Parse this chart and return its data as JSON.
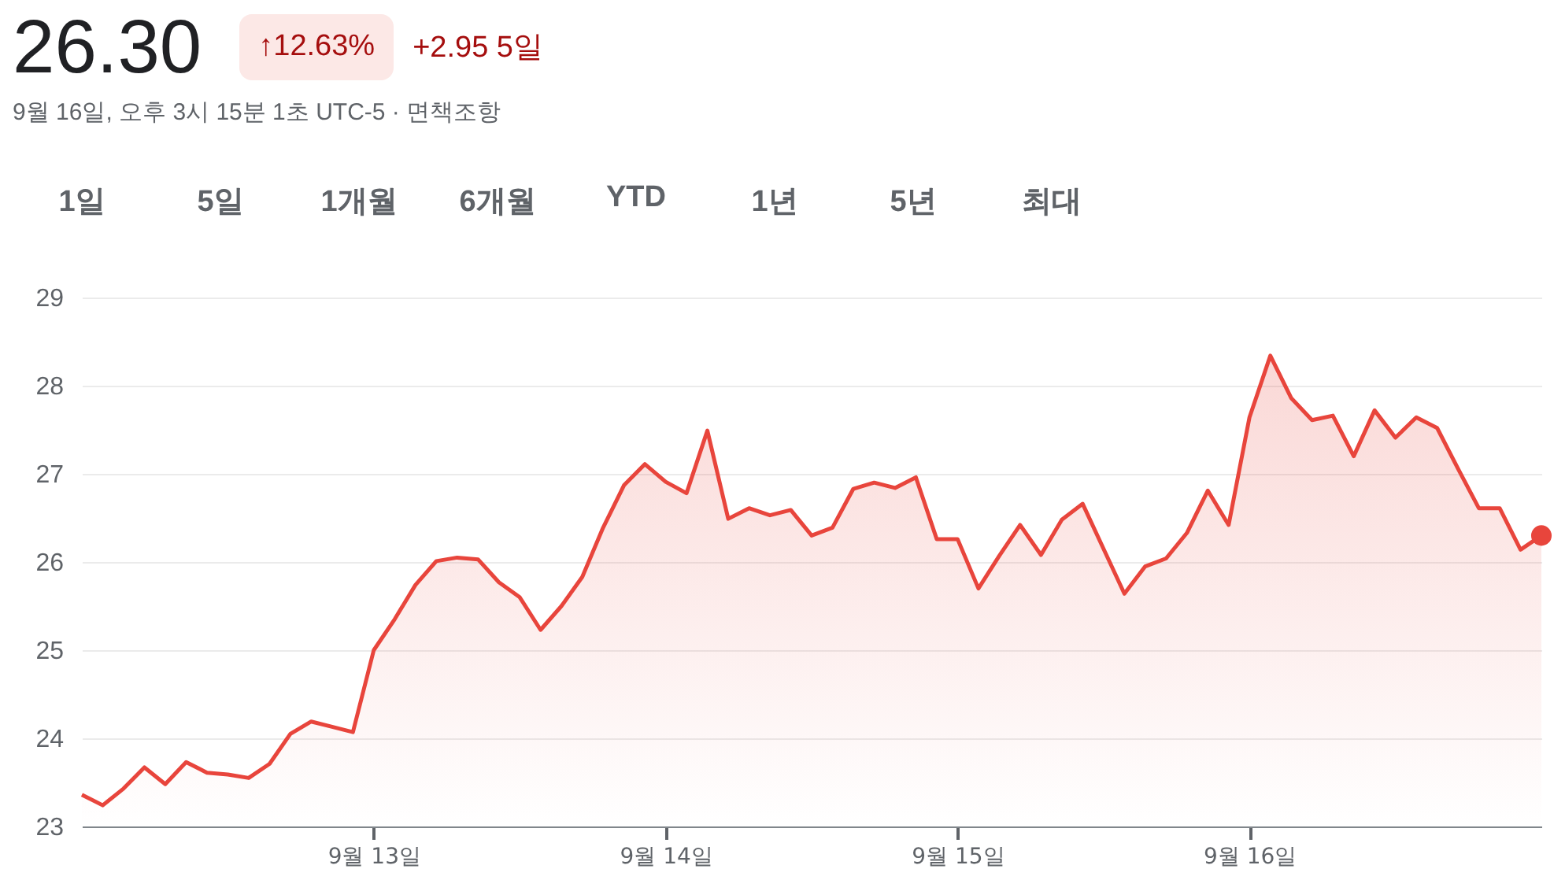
{
  "chart_data": {
    "type": "area",
    "title": "26.30",
    "subtitle": "9월 16일, 오후 3시 15분 1초 UTC-5 · 면책조항",
    "annotations": [
      "↑12.63%",
      "+2.95 5일",
      "1일",
      "5일",
      "1개월",
      "6개월",
      "YTD",
      "1년",
      "5년",
      "최대"
    ],
    "categories": [
      null,
      null,
      null,
      null,
      null,
      null,
      null,
      null,
      null,
      null,
      null,
      null,
      null,
      null,
      "9월 13일",
      null,
      null,
      null,
      null,
      null,
      null,
      null,
      null,
      null,
      null,
      null,
      null,
      null,
      "9월 14일",
      null,
      null,
      null,
      null,
      null,
      null,
      null,
      null,
      null,
      null,
      null,
      null,
      null,
      "9월 15일",
      null,
      null,
      null,
      null,
      null,
      null,
      null,
      null,
      null,
      null,
      null,
      null,
      null,
      "9월 16일",
      null,
      null,
      null,
      null,
      null,
      null,
      null,
      null,
      null,
      null,
      null,
      null,
      null,
      null
    ],
    "ylim": [
      23,
      29
    ],
    "yticks": [
      23,
      24,
      25,
      26,
      27,
      28,
      29
    ],
    "grid": "y",
    "series": [
      {
        "color": "#e8453c",
        "values": [
          23.36,
          23.24,
          23.43,
          23.67,
          23.48,
          23.73,
          23.61,
          23.59,
          23.55,
          23.71,
          24.05,
          24.19,
          24.13,
          24.07,
          25.0,
          25.35,
          25.74,
          26.01,
          26.05,
          26.03,
          25.77,
          25.6,
          25.23,
          25.5,
          25.83,
          26.39,
          26.87,
          27.11,
          26.91,
          26.78,
          27.49,
          26.49,
          26.61,
          26.53,
          26.59,
          26.3,
          26.39,
          26.83,
          26.9,
          26.84,
          26.96,
          26.26,
          26.26,
          25.7,
          26.07,
          26.42,
          26.08,
          26.48,
          26.66,
          26.15,
          25.64,
          25.95,
          26.04,
          26.33,
          26.81,
          26.42,
          27.64,
          28.34,
          27.86,
          27.61,
          27.66,
          27.2,
          27.72,
          27.41,
          27.64,
          27.52,
          27.06,
          26.61,
          26.61,
          26.14,
          26.3
        ]
      },
      {
        "type": "scatter",
        "marker": "circle",
        "color": "#e8453c",
        "values": [
          null,
          null,
          null,
          null,
          null,
          null,
          null,
          null,
          null,
          null,
          null,
          null,
          null,
          null,
          null,
          null,
          null,
          null,
          null,
          null,
          null,
          null,
          null,
          null,
          null,
          null,
          null,
          null,
          null,
          null,
          null,
          null,
          null,
          null,
          null,
          null,
          null,
          null,
          null,
          null,
          null,
          null,
          null,
          null,
          null,
          null,
          null,
          null,
          null,
          null,
          null,
          null,
          null,
          null,
          null,
          null,
          null,
          null,
          null,
          null,
          null,
          null,
          null,
          null,
          null,
          null,
          null,
          null,
          null,
          null,
          26.3
        ]
      }
    ]
  }
}
